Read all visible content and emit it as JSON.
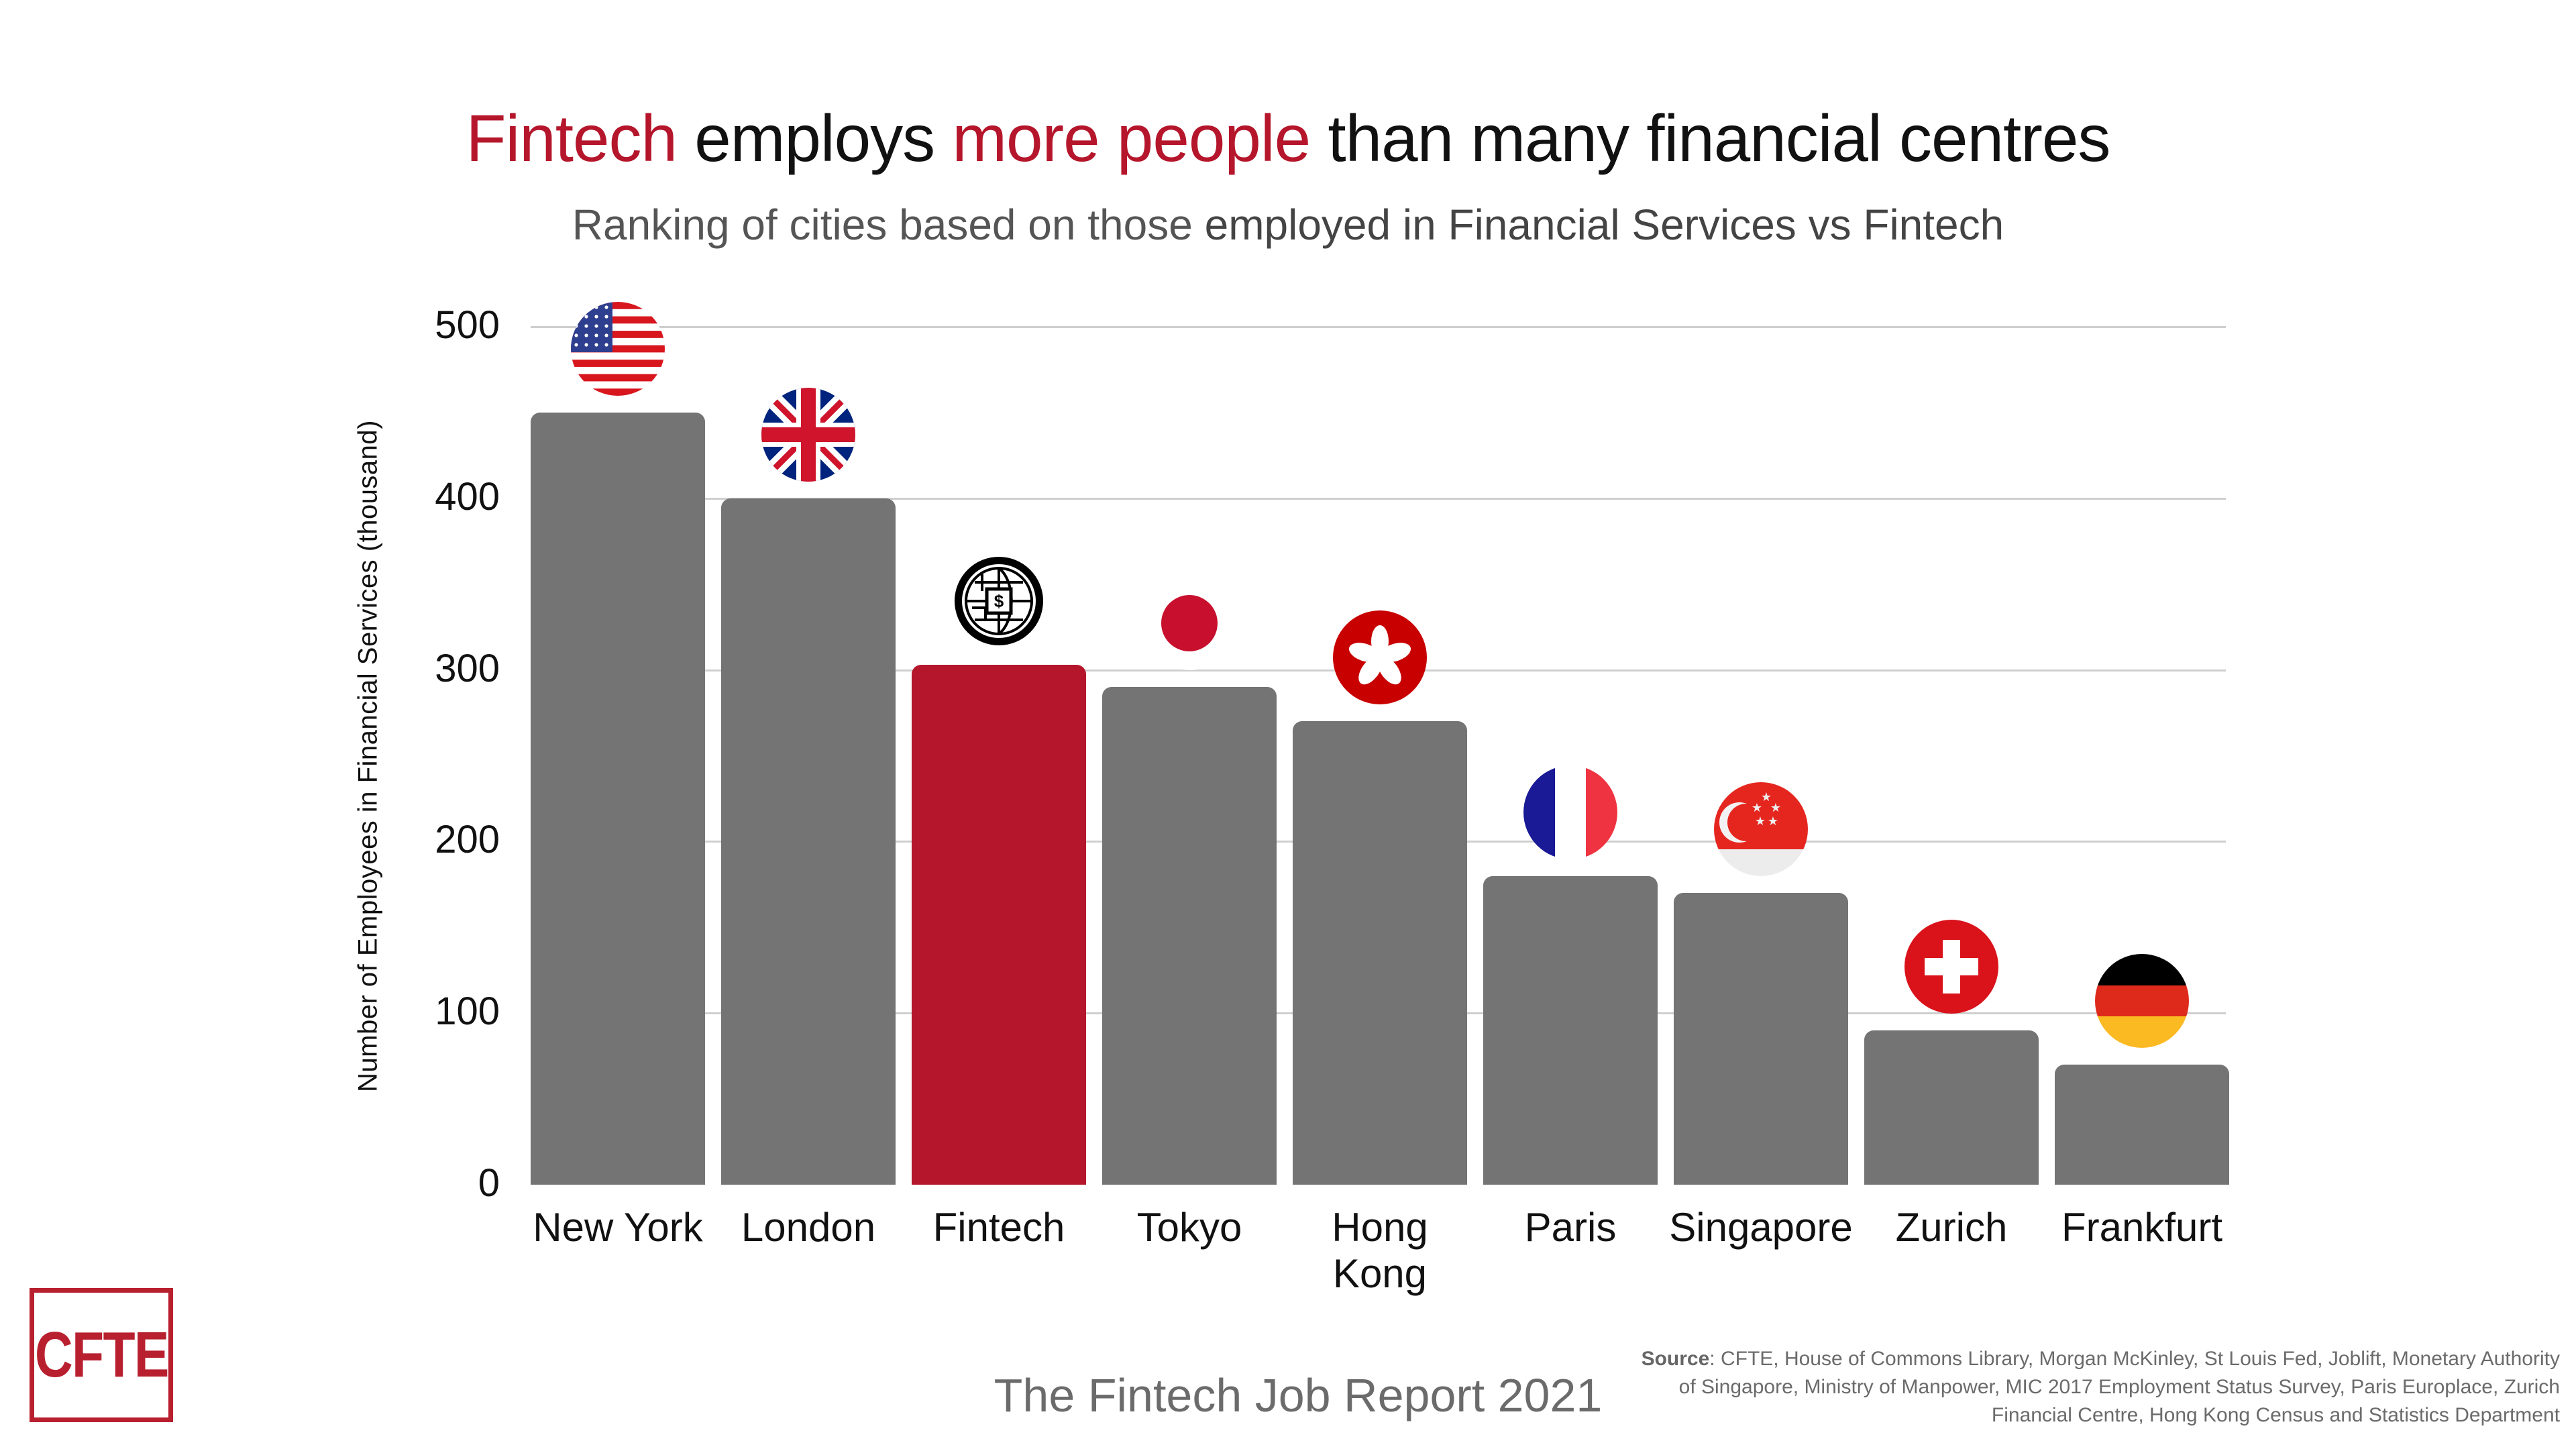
{
  "header": {
    "title_parts": [
      {
        "text": "Fintech",
        "highlight": true
      },
      {
        "text": " employs ",
        "highlight": false
      },
      {
        "text": "more people",
        "highlight": true
      },
      {
        "text": " than many financial centres",
        "highlight": false
      }
    ],
    "subtitle_plain": "Ranking of cities based on those ",
    "subtitle_emphasis": "employed in Financial Services vs Fintech"
  },
  "colors": {
    "accent_red": "#b5162b",
    "bar_gray": "#747474",
    "grid": "#cfcfcf"
  },
  "chart_data": {
    "type": "bar",
    "title": "Fintech employs more people than many financial centres",
    "subtitle": "Ranking of cities based on those employed in Financial Services vs Fintech",
    "xlabel": "",
    "ylabel": "Number of Employees in Financial Services (thousand)",
    "ylim": [
      0,
      500
    ],
    "yticks": [
      0,
      100,
      200,
      300,
      400,
      500
    ],
    "grid": true,
    "legend": null,
    "categories": [
      "New York",
      "London",
      "Fintech",
      "Tokyo",
      "Hong Kong",
      "Paris",
      "Singapore",
      "Zurich",
      "Frankfurt"
    ],
    "values": [
      450,
      400,
      303,
      290,
      270,
      180,
      170,
      90,
      70
    ],
    "bar_colors": [
      "#747474",
      "#747474",
      "#b5162b",
      "#747474",
      "#747474",
      "#747474",
      "#747474",
      "#747474",
      "#747474"
    ],
    "annotations": [
      "us-flag-icon",
      "uk-flag-icon",
      "fintech-globe-chip-icon",
      "japan-flag-icon",
      "hong-kong-flag-icon",
      "france-flag-icon",
      "singapore-flag-icon",
      "switzerland-flag-icon",
      "germany-flag-icon"
    ]
  },
  "footer": {
    "report_title": "The Fintech Job Report 2021",
    "source_label": "Source",
    "source_text": ": CFTE, House of Commons Library, Morgan McKinley, St Louis Fed, Joblift, Monetary Authority of Singapore, Ministry of Manpower, MIC 2017 Employment Status Survey, Paris Europlace, Zurich Financial Centre, Hong Kong Census and Statistics Department",
    "logo_text": "CFTE"
  }
}
